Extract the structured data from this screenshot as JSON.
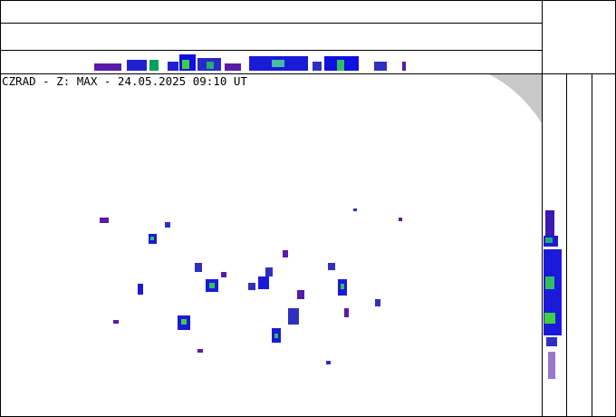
{
  "title": "CZRAD - Z: MAX - 24.05.2025 09:10 UT"
}
